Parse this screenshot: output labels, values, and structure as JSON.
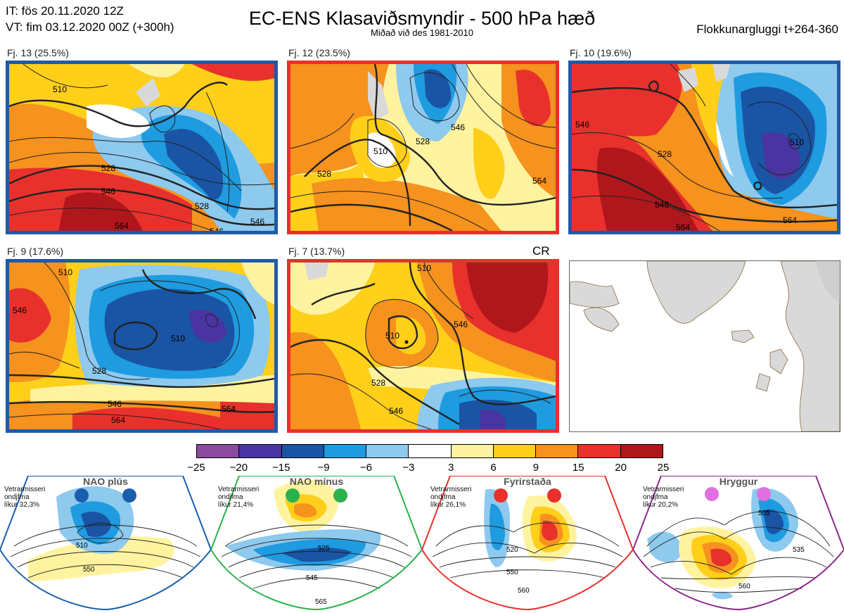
{
  "header": {
    "it_line": "IT: fös 20.11.2020 12Z",
    "vt_line": "VT: fim 03.12.2020 00Z  (+300h)",
    "title": "EC-ENS Klasaviðsmyndir - 500 hPa hæð",
    "subtitle": "Miðað við des 1981-2010",
    "window": "Flokkunargluggi t+264-360"
  },
  "panels": [
    {
      "label": "Fj. 13 (25.5%)",
      "regime_color": "#1f5aa6",
      "contours": [
        "528",
        "546",
        "564",
        "528",
        "546",
        "546",
        "510"
      ]
    },
    {
      "label": "Fj. 12 (23.5%)",
      "regime_color": "#e8312c",
      "contours": [
        "510",
        "528",
        "546",
        "564",
        "528"
      ]
    },
    {
      "label": "Fj. 10 (19.6%)",
      "regime_color": "#1f5aa6",
      "contours": [
        "546",
        "528",
        "546",
        "564",
        "564",
        "510"
      ]
    },
    {
      "label": "Fj. 9 (17.6%)",
      "regime_color": "#1f5aa6",
      "contours": [
        "510",
        "546",
        "528",
        "546",
        "564",
        "564",
        "510"
      ]
    },
    {
      "label": "Fj. 7 (13.7%)",
      "regime_color": "#e8312c",
      "contours": [
        "510",
        "528",
        "546",
        "546",
        "510"
      ]
    }
  ],
  "cr_label": "CR",
  "colorbar": {
    "colors": [
      "#8a4aa0",
      "#4a34a2",
      "#1a54a4",
      "#1f9be0",
      "#8ec9ee",
      "#ffffff",
      "#fff3a0",
      "#ffcf1a",
      "#f6921e",
      "#e8312c",
      "#b0171c"
    ],
    "ticks": [
      "−25",
      "−20",
      "−15",
      "−9",
      "−6",
      "−3",
      "3",
      "6",
      "9",
      "15",
      "20",
      "25"
    ]
  },
  "regimes": [
    {
      "name": "NAO plús",
      "text": "Vetrarmisseri\nondjfma\nlíkur 32,3%",
      "color": "#1a5fad",
      "contours": [
        "510",
        "550"
      ]
    },
    {
      "name": "NAO mínus",
      "text": "Vetrarmisseri\nondjfma\nlíkur 21,4%",
      "color": "#2bb24c",
      "contours": [
        "525",
        "545",
        "565"
      ]
    },
    {
      "name": "Fyrirstaða",
      "text": "Vetrarmisseri\nondjfma\nlíkur 26,1%",
      "color": "#e8312c",
      "contours": [
        "520",
        "550",
        "560"
      ]
    },
    {
      "name": "Hryggur",
      "text": "Vetrarmisseri\nondjfma\nlíkur 20,2%",
      "color": "#e070e0",
      "border": "#8b2a8b",
      "contours": [
        "505",
        "535",
        "560"
      ]
    }
  ]
}
